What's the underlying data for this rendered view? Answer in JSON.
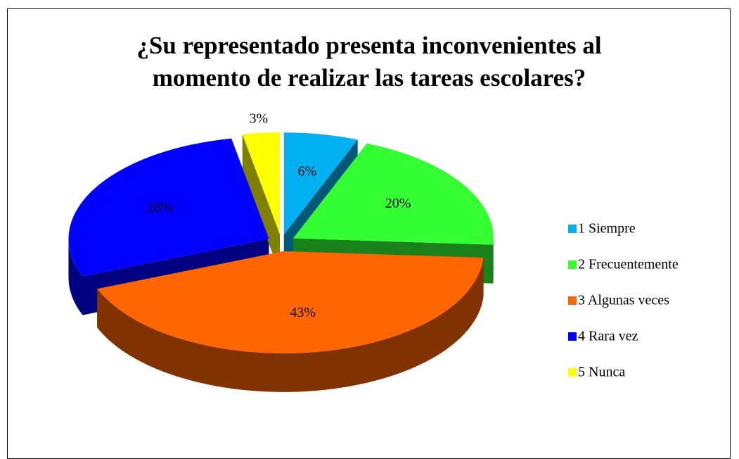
{
  "chart_data": {
    "type": "pie3d",
    "title": "¿Su representado presenta inconvenientes al momento de realizar las tareas escolares?",
    "categories": [
      "1 Siempre",
      "2 Frecuentemente",
      "3 Algunas veces",
      "4 Rara vez",
      "5 Nunca"
    ],
    "values": [
      6,
      20,
      43,
      28,
      3
    ],
    "value_labels": [
      "6%",
      "20%",
      "43%",
      "28%",
      "3%"
    ],
    "colors": [
      "#00b0f0",
      "#33ff33",
      "#ff6600",
      "#0000ff",
      "#ffff00"
    ],
    "legend": "right"
  }
}
